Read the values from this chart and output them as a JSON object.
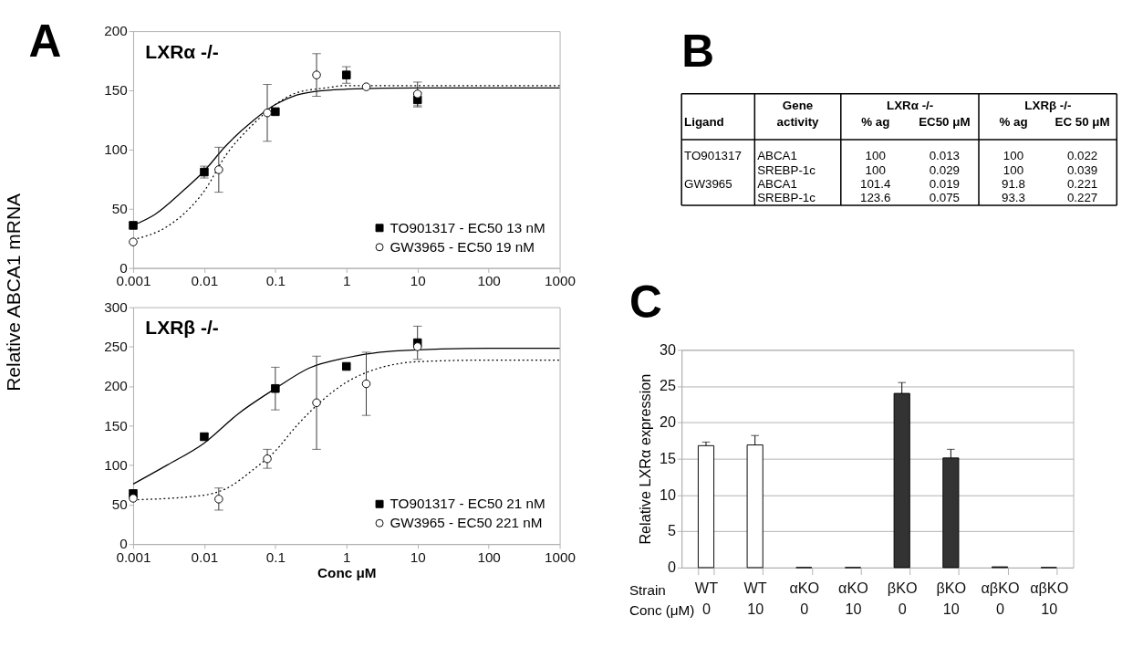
{
  "chart_data": [
    {
      "type": "scatter",
      "title": "LXRα -/-",
      "ylabel": "Relative ABCA1  mRNA",
      "annotations": [
        "A"
      ],
      "log": "x",
      "grid": false,
      "legend": "bottom right",
      "xlim": [
        0.001,
        1000
      ],
      "xticks": [
        0.001,
        0.01,
        0.1,
        1,
        10,
        100,
        1000
      ],
      "ylim": [
        0,
        200
      ],
      "yticks": [
        0,
        50,
        100,
        150,
        200
      ],
      "series": [
        {
          "type": "line",
          "line_style": "solid",
          "color": "#000000",
          "x": [
            0.001,
            0.002,
            0.005,
            0.01,
            0.02,
            0.05,
            0.1,
            0.2,
            0.5,
            1,
            10,
            1000
          ],
          "values": [
            36,
            45,
            65,
            82,
            103,
            125,
            138,
            146,
            150,
            151,
            152,
            152
          ]
        },
        {
          "type": "line",
          "line_style": "dotted",
          "color": "#000000",
          "x": [
            0.001,
            0.003,
            0.005,
            0.01,
            0.02,
            0.05,
            0.1,
            0.2,
            0.5,
            1,
            10,
            1000
          ],
          "values": [
            24,
            35,
            45,
            65,
            95,
            122,
            138,
            148,
            152,
            154,
            154,
            154
          ]
        },
        {
          "name": "TO901317 - EC50 13 nM",
          "type": "scatter",
          "marker": "square",
          "color": "#000000",
          "x": [
            0.001,
            0.01,
            0.1,
            1,
            10
          ],
          "values": [
            36,
            81,
            132,
            163,
            142
          ],
          "errors": [
            null,
            5,
            null,
            7,
            6
          ]
        },
        {
          "name": "GW3965 - EC50 19 nM",
          "type": "scatter",
          "marker": "circle",
          "color": "#ffffff",
          "x": [
            0.001,
            0.016,
            0.077,
            0.38,
            1.9,
            10
          ],
          "values": [
            22,
            83,
            131,
            163,
            153,
            147
          ],
          "errors": [
            null,
            19,
            24,
            18,
            null,
            10
          ]
        }
      ]
    },
    {
      "type": "scatter",
      "title": "LXRβ -/-",
      "xlabel": "Conc μM",
      "log": "x",
      "grid": false,
      "legend": "bottom right",
      "xlim": [
        0.001,
        1000
      ],
      "xticks": [
        0.001,
        0.01,
        0.1,
        1,
        10,
        100,
        1000
      ],
      "ylim": [
        0,
        300
      ],
      "yticks": [
        0,
        50,
        100,
        150,
        200,
        250,
        300
      ],
      "series": [
        {
          "type": "line",
          "line_style": "solid",
          "color": "#000000",
          "x": [
            0.001,
            0.003,
            0.01,
            0.03,
            0.1,
            0.3,
            1,
            3,
            10,
            100,
            1000
          ],
          "values": [
            76,
            100,
            128,
            165,
            197,
            223,
            236,
            243,
            246,
            248,
            248
          ]
        },
        {
          "type": "line",
          "line_style": "dotted",
          "color": "#000000",
          "x": [
            0.001,
            0.01,
            0.02,
            0.05,
            0.1,
            0.2,
            0.5,
            1,
            2,
            5,
            10,
            100,
            1000
          ],
          "values": [
            56,
            62,
            70,
            95,
            118,
            150,
            185,
            205,
            218,
            228,
            231,
            233,
            233
          ]
        },
        {
          "name": "TO901317 - EC50 21 nM",
          "type": "scatter",
          "marker": "square",
          "color": "#000000",
          "x": [
            0.001,
            0.01,
            0.1,
            1,
            10
          ],
          "values": [
            64,
            136,
            197,
            225,
            255
          ],
          "errors": [
            null,
            4,
            27,
            null,
            21
          ]
        },
        {
          "name": "GW3965 - EC50 221 nM",
          "type": "scatter",
          "marker": "circle",
          "color": "#ffffff",
          "x": [
            0.001,
            0.016,
            0.077,
            0.38,
            1.9,
            10
          ],
          "values": [
            58,
            57,
            108,
            179,
            203,
            250
          ],
          "errors": [
            null,
            14,
            12,
            59,
            40,
            null
          ]
        }
      ]
    },
    {
      "type": "other",
      "annotations": [
        "B",
        "LXRα -/-",
        "LXRβ -/-"
      ],
      "categories": [
        "Ligand",
        "Gene\nactivity",
        "% ag",
        "EC50 μM",
        "% ag",
        "EC 50 μM"
      ],
      "cell_labels": [
        [
          "TO901317",
          "ABCA1",
          "100",
          "0.013",
          "100",
          "0.022"
        ],
        [
          null,
          "SREBP-1c",
          "100",
          "0.029",
          "100",
          "0.039"
        ],
        [
          "GW3965",
          "ABCA1",
          "101.4",
          "0.019",
          "91.8",
          "0.221"
        ],
        [
          null,
          "SREBP-1c",
          "123.6",
          "0.075",
          "93.3",
          "0.227"
        ]
      ]
    },
    {
      "type": "bar",
      "annotations": [
        "C"
      ],
      "ylabel": "Relative LXRα expression",
      "xlabel": "Strain\nConc (μM)",
      "grid": "y",
      "categories": [
        "WT\n0",
        "WT\n10",
        "αKO\n0",
        "αKO\n10",
        "βKO\n0",
        "βKO\n10",
        "αβKO\n0",
        "αβKO\n10"
      ],
      "values": [
        16.8,
        16.9,
        0,
        0,
        24.0,
        15.1,
        0.1,
        0
      ],
      "colors": [
        "#ffffff",
        "#ffffff",
        "#000000",
        "#000000",
        "#333333",
        "#333333",
        "#333333",
        "#000000"
      ],
      "errors": [
        [
          16.8,
          17.3
        ],
        [
          16.9,
          18.2
        ],
        null,
        null,
        [
          24.0,
          25.5
        ],
        [
          15.1,
          16.3
        ],
        null,
        null
      ],
      "ylim": [
        0,
        30
      ],
      "yticks": [
        0,
        5,
        10,
        15,
        20,
        25,
        30
      ]
    }
  ]
}
